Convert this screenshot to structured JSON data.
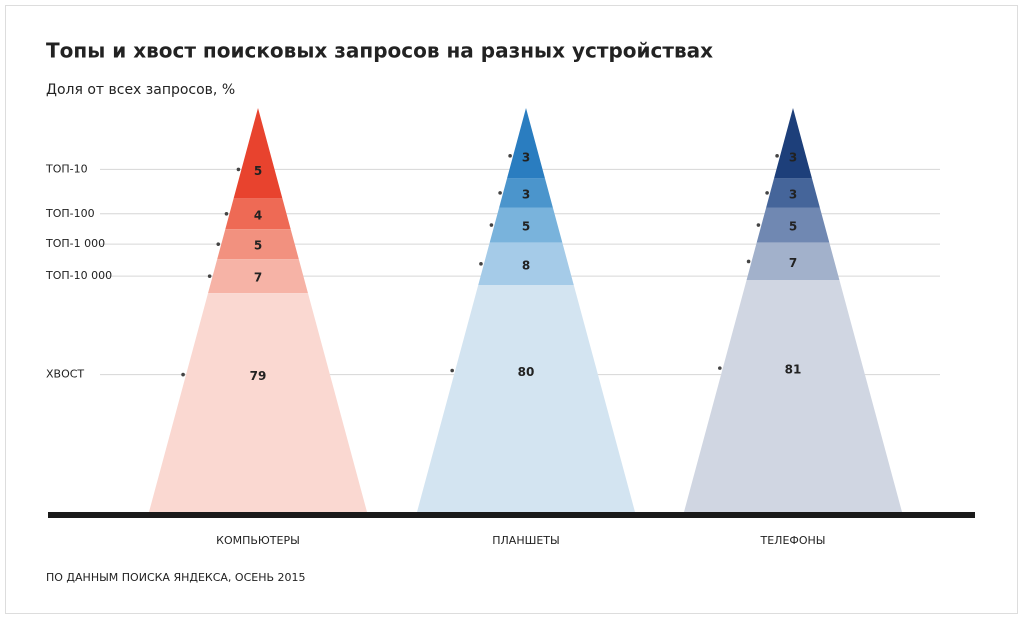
{
  "chart_data": {
    "type": "pyramid",
    "title": "Топы и хвост поисковых запросов на разных устройствах",
    "subtitle": "Доля от всех запросов, %",
    "source": "ПО ДАННЫМ ПОИСКА ЯНДЕКСА, ОСЕНЬ 2015",
    "categories": [
      "КОМПЬЮТЕРЫ",
      "ПЛАНШЕТЫ",
      "ТЕЛЕФОНЫ"
    ],
    "series": [
      {
        "name": "ТОП-10",
        "colors": [
          "#e8432e",
          "#2a7dc0",
          "#1d3f7a"
        ],
        "values": [
          5,
          3,
          3
        ]
      },
      {
        "name": "ТОП-100",
        "colors": [
          "#ee6a55",
          "#4b95cc",
          "#45659a"
        ],
        "values": [
          4,
          3,
          3
        ]
      },
      {
        "name": "ТОП-1 000",
        "colors": [
          "#f2917f",
          "#79b3dc",
          "#7088b2"
        ],
        "values": [
          5,
          5,
          5
        ]
      },
      {
        "name": "ТОП-10 000",
        "colors": [
          "#f6b3a6",
          "#a5cbe8",
          "#a2b1cb"
        ],
        "values": [
          7,
          8,
          7
        ]
      },
      {
        "name": "ХВОСТ",
        "colors": [
          "#fad8d1",
          "#d3e4f1",
          "#d0d6e2"
        ],
        "values": [
          79,
          80,
          81
        ]
      }
    ]
  }
}
